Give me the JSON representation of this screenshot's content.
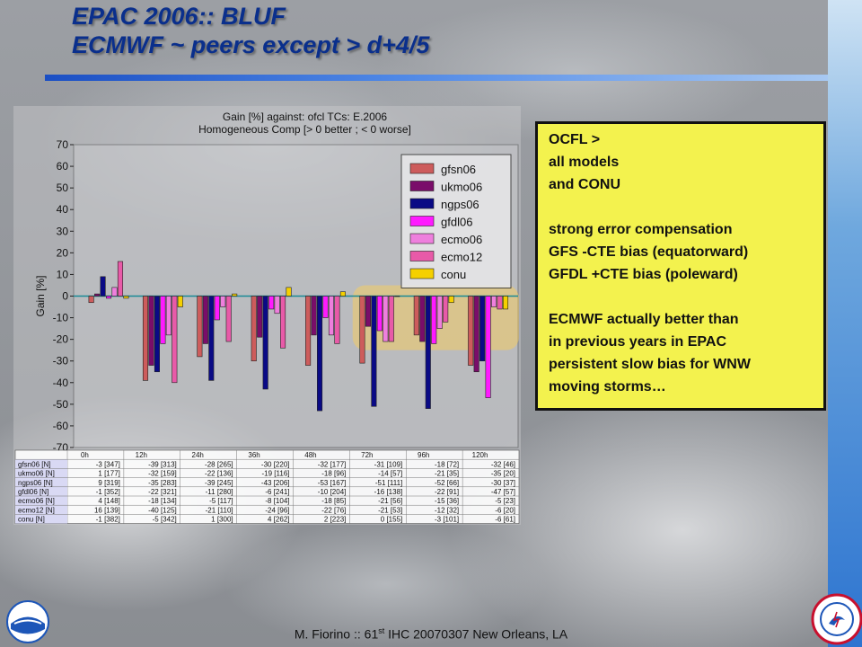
{
  "slide": {
    "title_line1": "EPAC 2006:: BLUF",
    "title_line2": "ECMWF ~ peers except > d+4/5",
    "footer_name": "M. Fiorino :: 61",
    "footer_sup": "st",
    "footer_rest": " IHC 20070307 New Orleans, LA",
    "colors": {
      "title": "#0a2f8c",
      "note_bg": "#f3f24e",
      "highlight": "#ffd050"
    }
  },
  "note": {
    "lines": [
      "OCFL >",
      "all models",
      "and CONU",
      "",
      "strong error compensation",
      "GFS -CTE bias (equatorward)",
      "GFDL +CTE bias (poleward)",
      "",
      "ECMWF actually better than",
      "in previous years in EPAC",
      "persistent slow bias for WNW",
      "moving storms…"
    ]
  },
  "chart_data": {
    "type": "bar",
    "title": "Gain [%] against: ofcl   TCs: E.2006",
    "subtitle": "Homogeneous Comp [> 0 better ; < 0 worse]",
    "ylabel": "Gain [%]",
    "xlabel": "",
    "ylim": [
      -70,
      70
    ],
    "yticks": [
      70,
      60,
      50,
      40,
      30,
      20,
      10,
      0,
      -10,
      -20,
      -30,
      -40,
      -50,
      -60,
      -70
    ],
    "grid": false,
    "legend_position": "top-right",
    "categories": [
      "0h",
      "12h",
      "24h",
      "36h",
      "48h",
      "72h",
      "96h",
      "120h"
    ],
    "series": [
      {
        "name": "gfsn06",
        "color": "#cd5c5c",
        "values": [
          -3,
          -39,
          -28,
          -30,
          -32,
          -31,
          -18,
          -32
        ],
        "table": [
          "-3 [347]",
          "-39 [313]",
          "-28 [265]",
          "-30 [220]",
          "-32 [177]",
          "-31 [109]",
          "-18 [72]",
          "-32 [46]"
        ]
      },
      {
        "name": "ukmo06",
        "color": "#7a0d6a",
        "values": [
          1,
          -32,
          -22,
          -19,
          -18,
          -14,
          -21,
          -35
        ],
        "table": [
          "1 [177]",
          "-32 [159]",
          "-22 [136]",
          "-19 [116]",
          "-18 [96]",
          "-14 [57]",
          "-21 [35]",
          "-35 [20]"
        ]
      },
      {
        "name": "ngps06",
        "color": "#0a0a85",
        "values": [
          9,
          -35,
          -39,
          -43,
          -53,
          -51,
          -52,
          -30
        ],
        "table": [
          "9 [319]",
          "-35 [283]",
          "-39 [245]",
          "-43 [206]",
          "-53 [167]",
          "-51 [111]",
          "-52 [66]",
          "-30 [37]"
        ]
      },
      {
        "name": "gfdl06",
        "color": "#ff1aff",
        "values": [
          -1,
          -22,
          -11,
          -6,
          -10,
          -16,
          -22,
          -47
        ],
        "table": [
          "-1 [352]",
          "-22 [321]",
          "-11 [280]",
          "-6 [241]",
          "-10 [204]",
          "-16 [138]",
          "-22 [91]",
          "-47 [57]"
        ]
      },
      {
        "name": "ecmo06",
        "color": "#ee7fdd",
        "values": [
          4,
          -18,
          -5,
          -8,
          -18,
          -21,
          -15,
          -5
        ],
        "table": [
          "4 [148]",
          "-18 [134]",
          "-5 [117]",
          "-8 [104]",
          "-18 [85]",
          "-21 [56]",
          "-15 [36]",
          "-5 [23]"
        ]
      },
      {
        "name": "ecmo12",
        "color": "#e85aa8",
        "values": [
          16,
          -40,
          -21,
          -24,
          -22,
          -21,
          -12,
          -6
        ],
        "table": [
          "16 [139]",
          "-40 [125]",
          "-21 [110]",
          "-24 [96]",
          "-22 [76]",
          "-21 [53]",
          "-12 [32]",
          "-6 [20]"
        ]
      },
      {
        "name": "conu",
        "color": "#f5d000",
        "values": [
          -1,
          -5,
          1,
          4,
          2,
          0,
          -3,
          -6
        ],
        "table": [
          "-1 [382]",
          "-5 [342]",
          "1 [300]",
          "4 [262]",
          "2 [223]",
          "0 [155]",
          "-3 [101]",
          "-6 [61]"
        ]
      }
    ],
    "table_row_labels": [
      "gfsn06 [N]",
      "ukmo06 [N]",
      "ngps06 [N]",
      "gfdl06 [N]",
      "ecmo06 [N]",
      "ecmo12 [N]",
      "conu [N]"
    ],
    "highlight_range": [
      "72h",
      "120h"
    ]
  }
}
